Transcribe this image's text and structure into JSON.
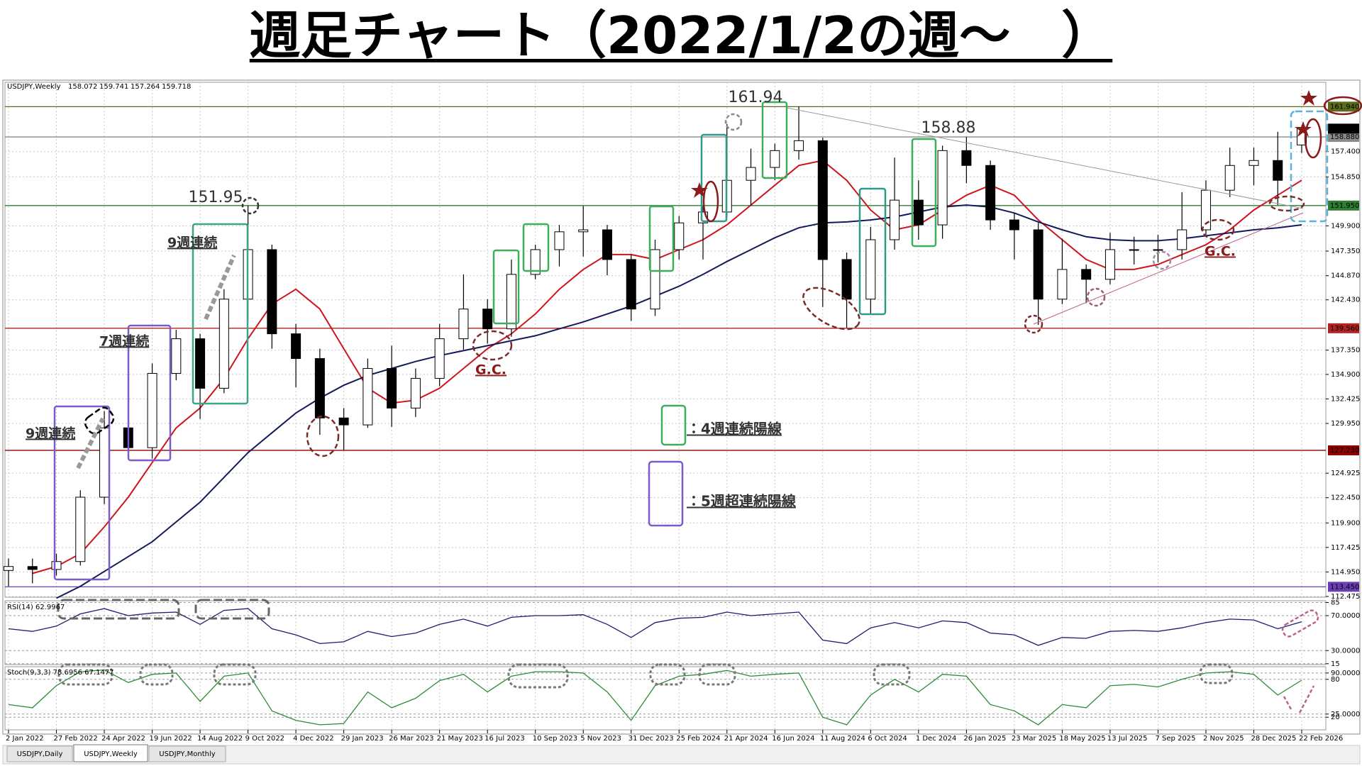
{
  "title": "週足チャート（2022/1/2の週～　）",
  "chart_data": [
    {
      "type": "candlestick",
      "symbol": "USDJPY,Weekly",
      "categories": [
        "2 Jan 2022",
        null,
        "27 Feb 2022",
        null,
        "24 Apr 2022",
        null,
        "19 Jun 2022",
        null,
        "14 Aug 2022",
        null,
        "9 Oct 2022",
        null,
        "4 Dec 2022",
        null,
        "29 Jan 2023",
        null,
        "26 Mar 2023",
        null,
        "21 May 2023",
        null,
        "16 Jul 2023",
        null,
        "10 Sep 2023",
        null,
        "5 Nov 2023",
        null,
        "31 Dec 2023",
        null,
        "25 Feb 2024",
        null,
        "21 Apr 2024",
        null,
        "16 Jun 2024",
        null,
        "11 Aug 2024",
        null,
        "6 Oct 2024",
        null,
        "1 Dec 2024",
        null,
        "26 Jan 2025",
        null,
        "23 Mar 2025",
        null,
        "18 May 2025",
        null,
        "13 Jul 2025",
        null,
        "7 Sep 2025",
        null,
        "2 Nov 2025",
        null,
        "28 Dec 2025",
        null,
        "22 Feb 2026"
      ],
      "open": [
        115.1,
        115.5,
        115.2,
        116.0,
        122.5,
        129.5,
        127.5,
        135.0,
        138.5,
        133.5,
        142.5,
        147.5,
        139.0,
        136.5,
        130.5,
        129.8,
        135.5,
        131.5,
        134.5,
        138.5,
        141.5,
        139.5,
        145.0,
        147.5,
        149.3,
        149.5,
        146.5,
        141.5,
        147.5,
        150.2,
        151.3,
        154.5,
        155.8,
        157.5,
        158.5,
        146.5,
        142.5,
        148.5,
        152.5,
        150.0,
        157.5,
        156.0,
        150.5,
        149.5,
        142.5,
        145.5,
        144.5,
        147.5,
        147.5,
        147.5,
        149.5,
        153.5,
        156.0,
        156.5,
        158.072
      ],
      "high": [
        116.3,
        116.3,
        116.8,
        123.2,
        131.2,
        131.3,
        136.0,
        139.4,
        139.0,
        143.5,
        151.95,
        148.0,
        140.0,
        137.5,
        131.5,
        136.5,
        137.8,
        135.5,
        140.0,
        145.0,
        142.5,
        146.5,
        148.0,
        150.0,
        151.9,
        150.0,
        147.0,
        148.5,
        150.9,
        151.9,
        160.2,
        157.7,
        158.2,
        161.94,
        158.8,
        147.2,
        149.8,
        156.8,
        154.5,
        158.0,
        158.88,
        156.5,
        151.2,
        150.2,
        148.6,
        146.0,
        149.2,
        148.8,
        149.0,
        153.3,
        154.5,
        157.8,
        157.8,
        159.4,
        159.741
      ],
      "low": [
        113.5,
        113.8,
        114.6,
        115.6,
        121.8,
        126.4,
        126.4,
        134.3,
        130.4,
        133.0,
        140.3,
        137.5,
        133.6,
        128.8,
        127.23,
        129.5,
        129.6,
        130.6,
        133.7,
        137.4,
        138.0,
        138.7,
        144.5,
        145.8,
        146.8,
        144.9,
        140.3,
        140.8,
        146.5,
        146.5,
        150.8,
        151.9,
        154.5,
        156.6,
        141.7,
        139.6,
        141.0,
        147.5,
        148.5,
        148.6,
        154.2,
        149.5,
        146.5,
        139.9,
        142.0,
        142.1,
        144.0,
        146.0,
        146.2,
        146.5,
        149.0,
        152.8,
        154.0,
        152.0,
        157.264
      ],
      "close": [
        115.5,
        115.2,
        116.0,
        122.5,
        129.5,
        127.5,
        135.0,
        138.5,
        133.5,
        142.5,
        147.5,
        139.0,
        136.5,
        130.5,
        129.8,
        135.5,
        131.5,
        134.5,
        138.5,
        141.5,
        139.5,
        145.0,
        147.5,
        149.3,
        149.5,
        146.5,
        141.5,
        147.5,
        150.2,
        151.3,
        154.5,
        155.8,
        157.5,
        158.5,
        146.5,
        142.5,
        148.5,
        152.5,
        150.0,
        157.5,
        156.0,
        150.5,
        149.5,
        142.5,
        145.5,
        144.5,
        147.5,
        147.5,
        147.5,
        149.5,
        153.5,
        156.0,
        156.5,
        154.5,
        159.718
      ],
      "up_color": "#ffffff",
      "down_color": "#000000",
      "wick_color": "#000000",
      "ma_lines": [
        {
          "color": "#d0141e",
          "values": [
            null,
            114.8,
            115.5,
            116.8,
            119.5,
            122.5,
            126.0,
            129.5,
            131.5,
            134.5,
            138.5,
            142.0,
            143.5,
            141.5,
            137.5,
            133.5,
            132.0,
            132.3,
            133.5,
            135.5,
            137.5,
            139.0,
            141.0,
            143.5,
            145.5,
            147.0,
            147.0,
            146.5,
            147.5,
            148.5,
            150.0,
            152.0,
            154.0,
            156.0,
            156.5,
            154.5,
            151.5,
            149.5,
            150.0,
            151.5,
            153.0,
            154.0,
            153.0,
            150.5,
            148.5,
            146.5,
            145.5,
            145.5,
            146.0,
            147.0,
            148.0,
            149.5,
            151.5,
            153.0,
            154.5
          ]
        },
        {
          "color": "#141a5c",
          "values": [
            null,
            null,
            112.3,
            113.5,
            115.0,
            116.5,
            118.0,
            120.0,
            122.0,
            124.5,
            127.0,
            129.0,
            131.0,
            132.5,
            133.8,
            134.8,
            135.5,
            136.2,
            136.8,
            137.3,
            137.8,
            138.3,
            138.8,
            139.5,
            140.2,
            141.0,
            141.8,
            142.8,
            143.8,
            145.0,
            146.3,
            147.5,
            148.7,
            149.7,
            150.2,
            150.3,
            150.5,
            150.8,
            151.3,
            151.8,
            152.0,
            151.8,
            151.2,
            150.3,
            149.5,
            148.8,
            148.5,
            148.4,
            148.4,
            148.6,
            148.9,
            149.2,
            149.5,
            149.7,
            150.0
          ]
        }
      ],
      "ylim": [
        112.4,
        164.4
      ],
      "yticks": [
        {
          "value": 157.4,
          "label": "157.400"
        },
        {
          "value": 154.85,
          "label": "154.850"
        },
        {
          "value": 149.9,
          "label": "149.900"
        },
        {
          "value": 147.35,
          "label": "147.350"
        },
        {
          "value": 144.87,
          "label": "144.870"
        },
        {
          "value": 142.43,
          "label": "142.430"
        },
        {
          "value": 137.35,
          "label": "137.350"
        },
        {
          "value": 134.9,
          "label": "134.900"
        },
        {
          "value": 132.425,
          "label": "132.425"
        },
        {
          "value": 129.95,
          "label": "129.950"
        },
        {
          "value": 124.925,
          "label": "124.925"
        },
        {
          "value": 122.45,
          "label": "122.450"
        },
        {
          "value": 119.9,
          "label": "119.900"
        },
        {
          "value": 117.425,
          "label": "117.425"
        },
        {
          "value": 114.95,
          "label": "114.950"
        },
        {
          "value": 112.475,
          "label": "112.475"
        }
      ],
      "levels": [
        {
          "value": 161.94,
          "label": "161.940",
          "color": "#5b6b1a"
        },
        {
          "value": 158.88,
          "label": "158.880",
          "color": "#8a8a8a"
        },
        {
          "value": 151.95,
          "label": "151.950",
          "color": "#2e7d32"
        },
        {
          "value": 139.56,
          "label": "139.560",
          "color": "#b22222"
        },
        {
          "value": 127.23,
          "label": "127.230",
          "color": "#8b0000"
        },
        {
          "value": 113.45,
          "label": "113.450",
          "color": "#6a3fb5"
        }
      ],
      "grid": true,
      "annotations": {
        "peaks": [
          "161.94",
          "158.88",
          "151.95"
        ],
        "streaks": [
          "9週連続",
          "7週連続",
          "9週連続"
        ],
        "gc": [
          "G.C.",
          "G.C."
        ]
      },
      "legend": [
        "：4週連続陽線",
        "：5週超連続陽線"
      ]
    },
    {
      "type": "line",
      "label": "RSI(14) 62.9967",
      "color": "#1c1c6e",
      "values": [
        55,
        52,
        58,
        72,
        78,
        70,
        73,
        74,
        60,
        76,
        78,
        55,
        48,
        38,
        40,
        52,
        46,
        50,
        60,
        66,
        58,
        68,
        70,
        70,
        71,
        60,
        45,
        62,
        67,
        68,
        74,
        70,
        72,
        74,
        42,
        38,
        56,
        62,
        56,
        64,
        62,
        50,
        48,
        36,
        45,
        44,
        52,
        53,
        52,
        56,
        62,
        66,
        65,
        55,
        62.9967
      ],
      "ylim": [
        14,
        87
      ],
      "yticks": [
        85,
        {
          "value": 70,
          "label": "70.0000"
        },
        {
          "value": 30,
          "label": "30.0000"
        },
        15
      ]
    },
    {
      "type": "line",
      "label": "Stoch(9,3,3) 78.6956 67.1477",
      "color": "#2e8b3a",
      "values": [
        40,
        35,
        70,
        92,
        95,
        75,
        88,
        90,
        45,
        85,
        90,
        30,
        15,
        8,
        10,
        60,
        35,
        50,
        78,
        88,
        60,
        85,
        92,
        92,
        90,
        60,
        15,
        70,
        85,
        88,
        94,
        85,
        88,
        90,
        20,
        8,
        55,
        80,
        60,
        88,
        85,
        40,
        30,
        8,
        40,
        35,
        70,
        72,
        68,
        80,
        90,
        92,
        88,
        55,
        78.6956
      ],
      "ylim": [
        0,
        100
      ],
      "yticks": [
        {
          "value": 90,
          "label": "90.0000"
        },
        80,
        {
          "value": 25,
          "label": "25.0000"
        },
        20
      ]
    }
  ],
  "tabs": [
    "USDJPY,Daily",
    "USDJPY,Weekly",
    "USDJPY,Monthly"
  ]
}
